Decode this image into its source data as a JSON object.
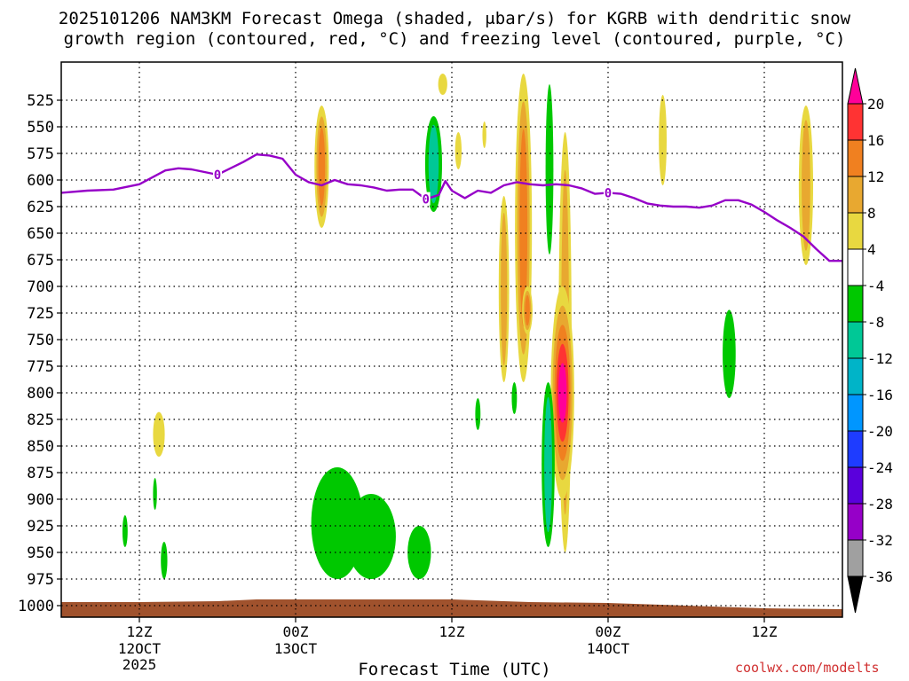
{
  "title": {
    "line1": "2025101206 NAM3KM Forecast Omega (shaded, μbar/s) for KGRB with dendritic snow",
    "line2": "growth region (contoured, red, °C) and freezing level (contoured, purple, °C)"
  },
  "credit": "coolwx.com/modelts",
  "chart_data": {
    "type": "contour",
    "title": "2025101206 NAM3KM Forecast Omega (shaded, μbar/s) for KGRB with dendritic snow growth region (contoured, red, °C) and freezing level (contoured, purple, °C)",
    "xlabel": "Forecast Time (UTC)",
    "ylabel": "",
    "xlim_hours": [
      0,
      60
    ],
    "ylim_hpa": [
      1000,
      500
    ],
    "y_scale": "pressure",
    "grid": true,
    "x_ticks": [
      {
        "hour": 6,
        "label": "12Z",
        "sub": "12OCT",
        "sub2": "2025"
      },
      {
        "hour": 18,
        "label": "00Z",
        "sub": "13OCT",
        "sub2": ""
      },
      {
        "hour": 30,
        "label": "12Z",
        "sub": "",
        "sub2": ""
      },
      {
        "hour": 42,
        "label": "00Z",
        "sub": "14OCT",
        "sub2": ""
      },
      {
        "hour": 54,
        "label": "12Z",
        "sub": "",
        "sub2": ""
      }
    ],
    "y_ticks": [
      525,
      550,
      575,
      600,
      625,
      650,
      675,
      700,
      725,
      750,
      775,
      800,
      825,
      850,
      875,
      900,
      925,
      950,
      975,
      1000
    ],
    "colorbar": {
      "labels": [
        "20",
        "16",
        "12",
        "8",
        "4",
        "-4",
        "-8",
        "-12",
        "-16",
        "-20",
        "-24",
        "-28",
        "-32",
        "-36"
      ],
      "colors": [
        "#ff0099",
        "#ff3333",
        "#f08020",
        "#e8a830",
        "#e8d840",
        "#ffffff",
        "#00c800",
        "#00c896",
        "#00b4c8",
        "#0096ff",
        "#1e3cff",
        "#5a00dc",
        "#9600c8",
        "#a0a0a0",
        "#000000"
      ]
    },
    "freezing_level": {
      "label": "0",
      "color": "#9600c8",
      "points": [
        [
          0,
          612
        ],
        [
          2,
          610
        ],
        [
          4,
          609
        ],
        [
          6,
          604
        ],
        [
          8,
          591
        ],
        [
          9,
          589
        ],
        [
          10,
          590
        ],
        [
          12,
          595
        ],
        [
          14,
          583
        ],
        [
          15,
          576
        ],
        [
          16,
          577
        ],
        [
          17,
          580
        ],
        [
          18,
          595
        ],
        [
          19,
          602
        ],
        [
          20,
          605
        ],
        [
          21,
          600
        ],
        [
          22,
          604
        ],
        [
          23,
          605
        ],
        [
          24,
          607
        ],
        [
          25,
          610
        ],
        [
          26,
          609
        ],
        [
          27,
          609
        ],
        [
          28,
          618
        ],
        [
          29,
          614
        ],
        [
          29.5,
          601
        ],
        [
          30,
          610
        ],
        [
          31,
          617
        ],
        [
          32,
          610
        ],
        [
          33,
          612
        ],
        [
          34,
          605
        ],
        [
          35,
          602
        ],
        [
          36,
          604
        ],
        [
          37,
          605
        ],
        [
          38,
          604
        ],
        [
          39,
          605
        ],
        [
          40,
          608
        ],
        [
          41,
          613
        ],
        [
          42,
          612
        ],
        [
          43,
          613
        ],
        [
          44,
          617
        ],
        [
          45,
          622
        ],
        [
          46,
          624
        ],
        [
          47,
          625
        ],
        [
          48,
          625
        ],
        [
          49,
          626
        ],
        [
          50,
          624
        ],
        [
          51,
          619
        ],
        [
          52,
          619
        ],
        [
          53,
          623
        ],
        [
          54,
          630
        ],
        [
          55,
          638
        ],
        [
          56,
          645
        ],
        [
          57,
          653
        ],
        [
          58,
          665
        ],
        [
          59,
          676
        ],
        [
          60,
          676
        ]
      ],
      "label_hours": [
        12,
        28,
        42
      ]
    },
    "omega_features": [
      {
        "hour": 20.0,
        "p_top": 530,
        "p_bot": 645,
        "hw": 0.55,
        "sign": 1,
        "level": 3
      },
      {
        "hour": 29.3,
        "p_top": 500,
        "p_bot": 520,
        "hw": 0.35,
        "sign": 1,
        "level": 1
      },
      {
        "hour": 28.6,
        "p_top": 540,
        "p_bot": 630,
        "hw": 0.65,
        "sign": -1,
        "level": 2
      },
      {
        "hour": 30.5,
        "p_top": 555,
        "p_bot": 590,
        "hw": 0.25,
        "sign": 1,
        "level": 1
      },
      {
        "hour": 35.5,
        "p_top": 500,
        "p_bot": 790,
        "hw": 0.65,
        "sign": 1,
        "level": 3
      },
      {
        "hour": 35.8,
        "p_top": 700,
        "p_bot": 745,
        "hw": 0.4,
        "sign": 1,
        "level": 3
      },
      {
        "hour": 34.0,
        "p_top": 615,
        "p_bot": 790,
        "hw": 0.4,
        "sign": 1,
        "level": 2
      },
      {
        "hour": 32.5,
        "p_top": 545,
        "p_bot": 570,
        "hw": 0.15,
        "sign": 1,
        "level": 1
      },
      {
        "hour": 37.5,
        "p_top": 510,
        "p_bot": 670,
        "hw": 0.3,
        "sign": -1,
        "level": 1
      },
      {
        "hour": 38.7,
        "p_top": 555,
        "p_bot": 950,
        "hw": 0.5,
        "sign": 1,
        "level": 2
      },
      {
        "hour": 38.5,
        "p_top": 700,
        "p_bot": 900,
        "hw": 0.9,
        "sign": 1,
        "level": 5
      },
      {
        "hour": 37.4,
        "p_top": 790,
        "p_bot": 945,
        "hw": 0.5,
        "sign": -1,
        "level": 2
      },
      {
        "hour": 34.8,
        "p_top": 790,
        "p_bot": 820,
        "hw": 0.2,
        "sign": -1,
        "level": 1
      },
      {
        "hour": 32.0,
        "p_top": 805,
        "p_bot": 835,
        "hw": 0.2,
        "sign": -1,
        "level": 1
      },
      {
        "hour": 46.2,
        "p_top": 520,
        "p_bot": 605,
        "hw": 0.3,
        "sign": 1,
        "level": 1
      },
      {
        "hour": 57.2,
        "p_top": 530,
        "p_bot": 680,
        "hw": 0.55,
        "sign": 1,
        "level": 2
      },
      {
        "hour": 51.3,
        "p_top": 722,
        "p_bot": 805,
        "hw": 0.5,
        "sign": -1,
        "level": 1
      },
      {
        "hour": 7.5,
        "p_top": 818,
        "p_bot": 860,
        "hw": 0.45,
        "sign": 1,
        "level": 1
      },
      {
        "hour": 7.2,
        "p_top": 880,
        "p_bot": 910,
        "hw": 0.15,
        "sign": -1,
        "level": 1
      },
      {
        "hour": 4.9,
        "p_top": 915,
        "p_bot": 945,
        "hw": 0.2,
        "sign": -1,
        "level": 1
      },
      {
        "hour": 7.9,
        "p_top": 940,
        "p_bot": 975,
        "hw": 0.25,
        "sign": -1,
        "level": 1
      },
      {
        "hour": 21.2,
        "p_top": 870,
        "p_bot": 975,
        "hw": 2.0,
        "sign": -1,
        "level": 1
      },
      {
        "hour": 23.8,
        "p_top": 895,
        "p_bot": 975,
        "hw": 1.9,
        "sign": -1,
        "level": 1
      },
      {
        "hour": 27.5,
        "p_top": 925,
        "p_bot": 975,
        "hw": 0.9,
        "sign": -1,
        "level": 1
      }
    ]
  }
}
